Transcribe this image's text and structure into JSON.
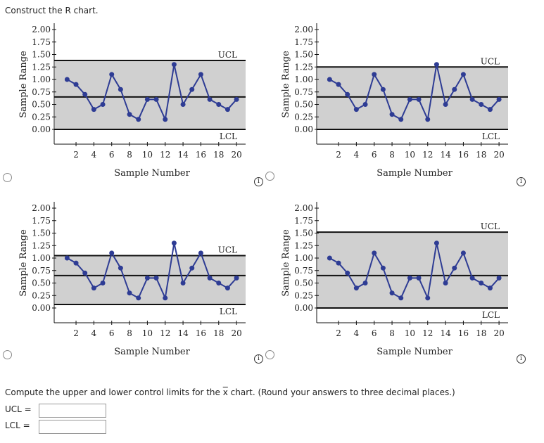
{
  "question": "Construct the R chart.",
  "chart_data": [
    {
      "type": "line",
      "xlabel": "Sample Number",
      "ylabel": "Sample Range",
      "x": [
        1,
        2,
        3,
        4,
        5,
        6,
        7,
        8,
        9,
        10,
        11,
        12,
        13,
        14,
        15,
        16,
        17,
        18,
        19,
        20
      ],
      "values": [
        1.0,
        0.9,
        0.7,
        0.4,
        0.5,
        1.1,
        0.8,
        0.3,
        0.2,
        0.6,
        0.6,
        0.2,
        1.3,
        0.5,
        0.8,
        1.1,
        0.6,
        0.5,
        0.4,
        0.6
      ],
      "center": 0.65,
      "ucl": 1.38,
      "lcl": 0.0,
      "ucl_label": "UCL",
      "lcl_label": "LCL",
      "ylim": [
        0,
        2
      ],
      "yticks": [
        "0.00",
        "0.25",
        "0.50",
        "0.75",
        "1.00",
        "1.25",
        "1.50",
        "1.75",
        "2.00"
      ],
      "xticks": [
        "2",
        "4",
        "6",
        "8",
        "10",
        "12",
        "14",
        "16",
        "18",
        "20"
      ],
      "color": "#2e3c94",
      "band": "#d0d0d0"
    },
    {
      "type": "line",
      "xlabel": "Sample Number",
      "ylabel": "Sample Range",
      "x": [
        1,
        2,
        3,
        4,
        5,
        6,
        7,
        8,
        9,
        10,
        11,
        12,
        13,
        14,
        15,
        16,
        17,
        18,
        19,
        20
      ],
      "values": [
        1.0,
        0.9,
        0.7,
        0.4,
        0.5,
        1.1,
        0.8,
        0.3,
        0.2,
        0.6,
        0.6,
        0.2,
        1.3,
        0.5,
        0.8,
        1.1,
        0.6,
        0.5,
        0.4,
        0.6
      ],
      "center": 0.65,
      "ucl": 1.25,
      "lcl": 0.0,
      "ucl_label": "UCL",
      "lcl_label": "LCL",
      "ylim": [
        0,
        2
      ],
      "yticks": [
        "0.00",
        "0.25",
        "0.50",
        "0.75",
        "1.00",
        "1.25",
        "1.50",
        "1.75",
        "2.00"
      ],
      "xticks": [
        "2",
        "4",
        "6",
        "8",
        "10",
        "12",
        "14",
        "16",
        "18",
        "20"
      ],
      "color": "#2e3c94",
      "band": "#d0d0d0"
    },
    {
      "type": "line",
      "xlabel": "Sample Number",
      "ylabel": "Sample Range",
      "x": [
        1,
        2,
        3,
        4,
        5,
        6,
        7,
        8,
        9,
        10,
        11,
        12,
        13,
        14,
        15,
        16,
        17,
        18,
        19,
        20
      ],
      "values": [
        1.0,
        0.9,
        0.7,
        0.4,
        0.5,
        1.1,
        0.8,
        0.3,
        0.2,
        0.6,
        0.6,
        0.2,
        1.3,
        0.5,
        0.8,
        1.1,
        0.6,
        0.5,
        0.4,
        0.6
      ],
      "center": 0.65,
      "ucl": 1.05,
      "lcl": 0.07,
      "ucl_label": "UCL",
      "lcl_label": "LCL",
      "ylim": [
        0,
        2
      ],
      "yticks": [
        "0.00",
        "0.25",
        "0.50",
        "0.75",
        "1.00",
        "1.25",
        "1.50",
        "1.75",
        "2.00"
      ],
      "xticks": [
        "2",
        "4",
        "6",
        "8",
        "10",
        "12",
        "14",
        "16",
        "18",
        "20"
      ],
      "color": "#2e3c94",
      "band": "#d0d0d0"
    },
    {
      "type": "line",
      "xlabel": "Sample Number",
      "ylabel": "Sample Range",
      "x": [
        1,
        2,
        3,
        4,
        5,
        6,
        7,
        8,
        9,
        10,
        11,
        12,
        13,
        14,
        15,
        16,
        17,
        18,
        19,
        20
      ],
      "values": [
        1.0,
        0.9,
        0.7,
        0.4,
        0.5,
        1.1,
        0.8,
        0.3,
        0.2,
        0.6,
        0.6,
        0.2,
        1.3,
        0.5,
        0.8,
        1.1,
        0.6,
        0.5,
        0.4,
        0.6
      ],
      "center": 0.65,
      "ucl": 1.52,
      "lcl": 0.0,
      "ucl_label": "UCL",
      "lcl_label": "LCL",
      "ylim": [
        0,
        2
      ],
      "yticks": [
        "0.00",
        "0.25",
        "0.50",
        "0.75",
        "1.00",
        "1.25",
        "1.50",
        "1.75",
        "2.00"
      ],
      "xticks": [
        "2",
        "4",
        "6",
        "8",
        "10",
        "12",
        "14",
        "16",
        "18",
        "20"
      ],
      "color": "#2e3c94",
      "band": "#d0d0d0"
    }
  ],
  "info_icon": "i",
  "compute": {
    "prefix": "Compute the upper and lower control limits for the ",
    "xbar": "x",
    "suffix": " chart. (Round your answers to three decimal places.)"
  },
  "ucl_label": "UCL  =",
  "lcl_label": "LCL  =",
  "ucl_value": "",
  "lcl_value": ""
}
